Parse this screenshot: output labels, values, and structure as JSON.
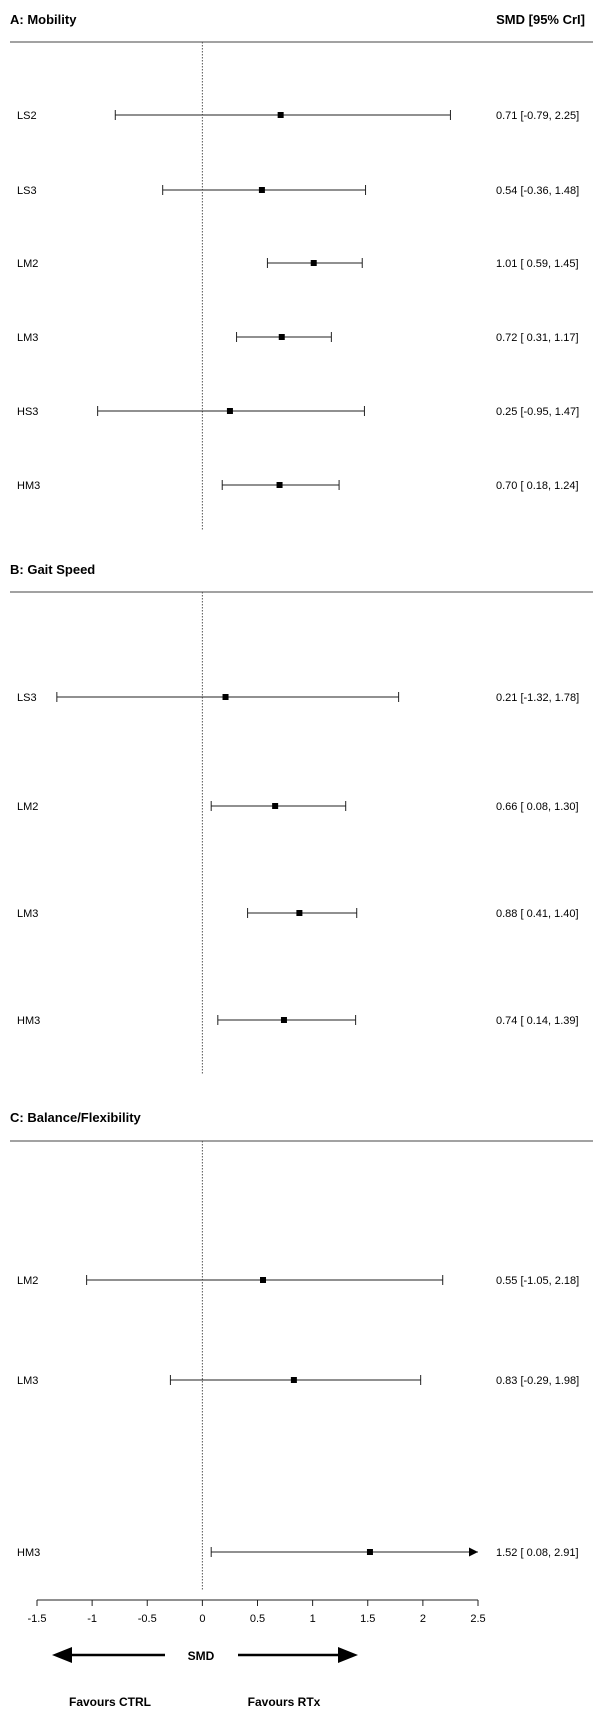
{
  "chart_data": {
    "type": "forest",
    "column_header": "SMD [95%  CrI]",
    "xlabel": "SMD",
    "xlim": [
      -1.5,
      2.5
    ],
    "xticks": [
      -1.5,
      -1,
      -0.5,
      0,
      0.5,
      1,
      1.5,
      2,
      2.5
    ],
    "xtick_labels": [
      "-1.5",
      "-1",
      "-0.5",
      "0",
      "0.5",
      "1",
      "1.5",
      "2",
      "2.5"
    ],
    "reference_line": 0,
    "direction_labels": {
      "left": "Favours  CTRL",
      "right": "Favours RTx"
    },
    "panels": [
      {
        "title": "A: Mobility",
        "rows": [
          {
            "label": "LS2",
            "est": 0.71,
            "lo": -0.79,
            "hi": 2.25,
            "text": "0.71 [-0.79, 2.25]"
          },
          {
            "label": "LS3",
            "est": 0.54,
            "lo": -0.36,
            "hi": 1.48,
            "text": "0.54 [-0.36, 1.48]"
          },
          {
            "label": "LM2",
            "est": 1.01,
            "lo": 0.59,
            "hi": 1.45,
            "text": "1.01 [ 0.59, 1.45]"
          },
          {
            "label": "LM3",
            "est": 0.72,
            "lo": 0.31,
            "hi": 1.17,
            "text": "0.72 [ 0.31, 1.17]"
          },
          {
            "label": "HS3",
            "est": 0.25,
            "lo": -0.95,
            "hi": 1.47,
            "text": "0.25 [-0.95, 1.47]"
          },
          {
            "label": "HM3",
            "est": 0.7,
            "lo": 0.18,
            "hi": 1.24,
            "text": "0.70 [ 0.18, 1.24]"
          }
        ]
      },
      {
        "title": "B: Gait  Speed",
        "rows": [
          {
            "label": "LS3",
            "est": 0.21,
            "lo": -1.32,
            "hi": 1.78,
            "text": "0.21 [-1.32, 1.78]"
          },
          {
            "label": "LM2",
            "est": 0.66,
            "lo": 0.08,
            "hi": 1.3,
            "text": "0.66 [ 0.08, 1.30]"
          },
          {
            "label": "LM3",
            "est": 0.88,
            "lo": 0.41,
            "hi": 1.4,
            "text": "0.88 [ 0.41, 1.40]"
          },
          {
            "label": "HM3",
            "est": 0.74,
            "lo": 0.14,
            "hi": 1.39,
            "text": "0.74 [ 0.14, 1.39]"
          }
        ]
      },
      {
        "title": "C: Balance/Flexibility",
        "rows": [
          {
            "label": "LM2",
            "est": 0.55,
            "lo": -1.05,
            "hi": 2.18,
            "text": "0.55 [-1.05, 2.18]"
          },
          {
            "label": "LM3",
            "est": 0.83,
            "lo": -0.29,
            "hi": 1.98,
            "text": "0.83 [-0.29, 1.98]"
          },
          {
            "label": "HM3",
            "est": 1.52,
            "lo": 0.08,
            "hi": 2.91,
            "text": "1.52 [ 0.08, 2.91]",
            "truncated_right": true
          }
        ]
      }
    ]
  }
}
